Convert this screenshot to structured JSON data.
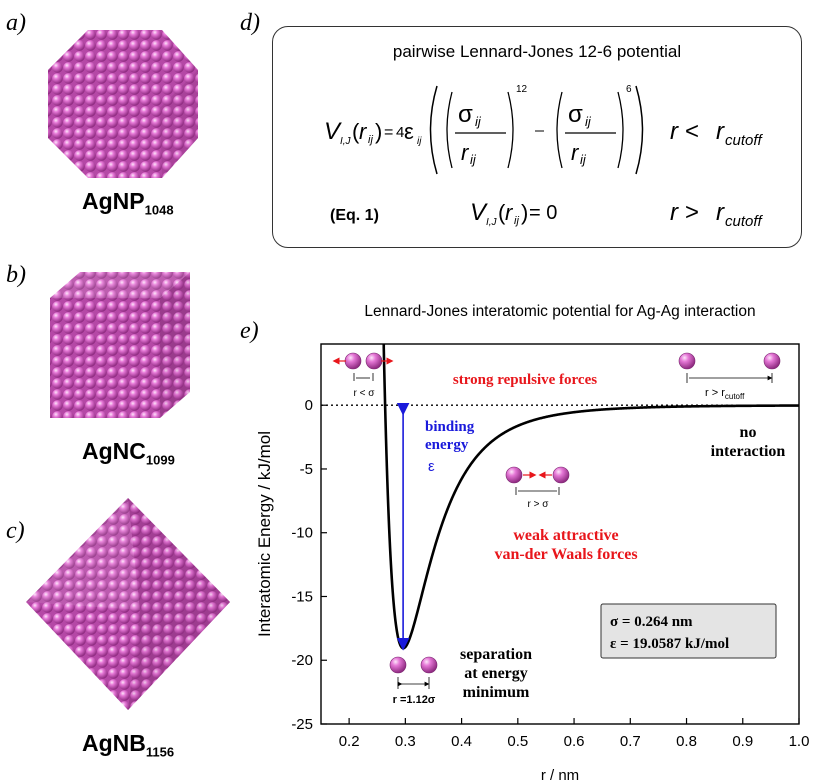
{
  "panels": {
    "a": {
      "letter": "a)",
      "label": "AgNP",
      "subscript": "1048"
    },
    "b": {
      "letter": "b)",
      "label": "AgNC",
      "subscript": "1099"
    },
    "c": {
      "letter": "c)",
      "label": "AgNB",
      "subscript": "1156"
    },
    "d": {
      "letter": "d)"
    },
    "e": {
      "letter": "e)"
    }
  },
  "equation": {
    "title": "pairwise Lennard-Jones 12-6 potential",
    "eq_label": "(Eq. 1)",
    "exp12": "12",
    "exp6": "6",
    "cond1_r": "r <",
    "cond1_sub": "cutoff",
    "cond2_r": "r >",
    "cond2_sub": "cutoff",
    "zero": "= 0"
  },
  "chart_data": {
    "type": "line",
    "title": "Lennard-Jones interatomic potential for Ag-Ag interaction",
    "xlabel": "r / nm",
    "ylabel": "Interatomic Energy / kJ/mol",
    "xlim": [
      0.15,
      1.0
    ],
    "ylim": [
      -25,
      4.8
    ],
    "xticks": [
      0.2,
      0.3,
      0.4,
      0.5,
      0.6,
      0.7,
      0.8,
      0.9,
      1.0
    ],
    "xtick_labels": [
      "0.2",
      "0.3",
      "0.4",
      "0.5",
      "0.6",
      "0.7",
      "0.8",
      "0.9",
      "1.0"
    ],
    "yticks": [
      0,
      -5,
      -10,
      -15,
      -20,
      -25
    ],
    "ytick_labels": [
      "0",
      "-5",
      "-10",
      "-15",
      "-20",
      "-25"
    ],
    "sigma": 0.264,
    "epsilon": 19.0587,
    "minimum": {
      "r": 0.296,
      "energy": -19.0587
    },
    "params_box": {
      "sigma": "σ = 0.264 nm",
      "epsilon": "ε = 19.0587 kJ/mol"
    },
    "annotations": {
      "strong_repulsive": "strong repulsive forces",
      "binding_1": "binding",
      "binding_2": "energy",
      "binding_eps": "ε",
      "no_interaction_1": "no",
      "no_interaction_2": "interaction",
      "weak_1": "weak attractive",
      "weak_2": "van-der Waals forces",
      "separation_1": "separation",
      "separation_2": "at energy",
      "separation_3": "minimum",
      "r_lt_sigma": "r < σ",
      "r_gt_sigma": "r > σ",
      "r_min": "r =1.12σ",
      "r_gt_cut": "r > r",
      "r_gt_cut_sub": "cutoff"
    },
    "colors": {
      "curve": "#000000",
      "arrow": "#1a1adb",
      "red": "#e8161b",
      "atom": "#d24fc2"
    }
  }
}
